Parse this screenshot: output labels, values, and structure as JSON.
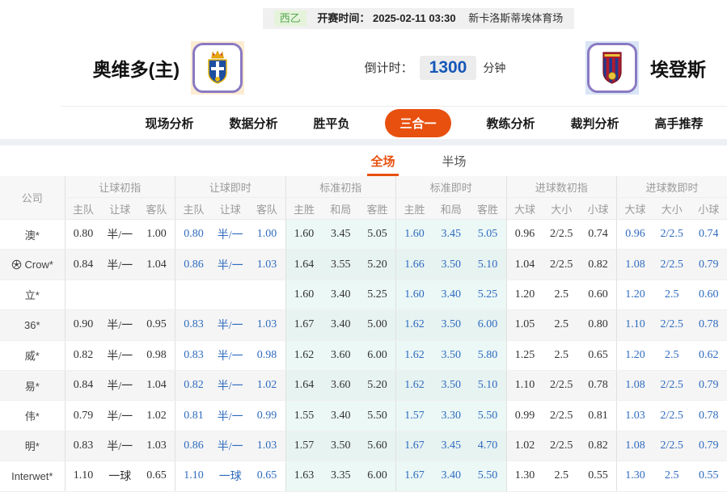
{
  "header": {
    "league": "西乙",
    "kickoff_label": "开赛时间：",
    "kickoff_time": "2025-02-11 03:30",
    "venue": "新卡洛斯蒂埃体育场",
    "home_team": "奥维多(主)",
    "away_team": "埃登斯",
    "countdown_label": "倒计时：",
    "countdown_value": "1300",
    "countdown_unit": "分钟"
  },
  "nav": {
    "items": [
      {
        "label": "现场分析",
        "active": false
      },
      {
        "label": "数据分析",
        "active": false
      },
      {
        "label": "胜平负",
        "active": false
      },
      {
        "label": "三合一",
        "active": true
      },
      {
        "label": "教练分析",
        "active": false
      },
      {
        "label": "裁判分析",
        "active": false
      },
      {
        "label": "高手推荐",
        "active": false
      }
    ]
  },
  "subtabs": {
    "full": "全场",
    "half": "半场"
  },
  "icons": {
    "home_logo": "oviedo-crest",
    "away_logo": "eldense-crest",
    "crow_row": "soccer-ball-icon"
  },
  "colors": {
    "accent_orange": "#e8500f",
    "live_blue": "#2f6bbf",
    "league_green": "#55a854",
    "countdown_blue": "#1557b8",
    "std_column_bg": "#ebf8f6",
    "alt_row_bg": "#f5f5f5"
  },
  "table": {
    "company_header": "公司",
    "groups": [
      {
        "label": "让球初指",
        "cols": [
          "主队",
          "让球",
          "客队"
        ]
      },
      {
        "label": "让球即时",
        "cols": [
          "主队",
          "让球",
          "客队"
        ]
      },
      {
        "label": "标准初指",
        "cols": [
          "主胜",
          "和局",
          "客胜"
        ]
      },
      {
        "label": "标准即时",
        "cols": [
          "主胜",
          "和局",
          "客胜"
        ]
      },
      {
        "label": "进球数初指",
        "cols": [
          "大球",
          "大小",
          "小球"
        ]
      },
      {
        "label": "进球数即时",
        "cols": [
          "大球",
          "大小",
          "小球"
        ]
      }
    ],
    "rows": [
      {
        "company": "澳*",
        "icon": false,
        "cells": [
          "0.80",
          "半/一",
          "1.00",
          "0.80",
          "半/一",
          "1.00",
          "1.60",
          "3.45",
          "5.05",
          "1.60",
          "3.45",
          "5.05",
          "0.96",
          "2/2.5",
          "0.74",
          "0.96",
          "2/2.5",
          "0.74"
        ]
      },
      {
        "company": "Crow*",
        "icon": true,
        "cells": [
          "0.84",
          "半/一",
          "1.04",
          "0.86",
          "半/一",
          "1.03",
          "1.64",
          "3.55",
          "5.20",
          "1.66",
          "3.50",
          "5.10",
          "1.04",
          "2/2.5",
          "0.82",
          "1.08",
          "2/2.5",
          "0.79"
        ]
      },
      {
        "company": "立*",
        "icon": false,
        "cells": [
          "",
          "",
          "",
          "",
          "",
          "",
          "1.60",
          "3.40",
          "5.25",
          "1.60",
          "3.40",
          "5.25",
          "1.20",
          "2.5",
          "0.60",
          "1.20",
          "2.5",
          "0.60"
        ]
      },
      {
        "company": "36*",
        "icon": false,
        "cells": [
          "0.90",
          "半/一",
          "0.95",
          "0.83",
          "半/一",
          "1.03",
          "1.67",
          "3.40",
          "5.00",
          "1.62",
          "3.50",
          "6.00",
          "1.05",
          "2.5",
          "0.80",
          "1.10",
          "2/2.5",
          "0.78"
        ]
      },
      {
        "company": "威*",
        "icon": false,
        "cells": [
          "0.82",
          "半/一",
          "0.98",
          "0.83",
          "半/一",
          "0.98",
          "1.62",
          "3.60",
          "6.00",
          "1.62",
          "3.50",
          "5.80",
          "1.25",
          "2.5",
          "0.65",
          "1.20",
          "2.5",
          "0.62"
        ]
      },
      {
        "company": "易*",
        "icon": false,
        "cells": [
          "0.84",
          "半/一",
          "1.04",
          "0.82",
          "半/一",
          "1.02",
          "1.64",
          "3.60",
          "5.20",
          "1.62",
          "3.50",
          "5.10",
          "1.10",
          "2/2.5",
          "0.78",
          "1.08",
          "2/2.5",
          "0.79"
        ]
      },
      {
        "company": "伟*",
        "icon": false,
        "cells": [
          "0.79",
          "半/一",
          "1.02",
          "0.81",
          "半/一",
          "0.99",
          "1.55",
          "3.40",
          "5.50",
          "1.57",
          "3.30",
          "5.50",
          "0.99",
          "2/2.5",
          "0.81",
          "1.03",
          "2/2.5",
          "0.78"
        ]
      },
      {
        "company": "明*",
        "icon": false,
        "cells": [
          "0.83",
          "半/一",
          "1.03",
          "0.86",
          "半/一",
          "1.03",
          "1.57",
          "3.50",
          "5.60",
          "1.67",
          "3.45",
          "4.70",
          "1.02",
          "2/2.5",
          "0.82",
          "1.08",
          "2/2.5",
          "0.79"
        ]
      },
      {
        "company": "Interwet*",
        "icon": false,
        "cells": [
          "1.10",
          "一球",
          "0.65",
          "1.10",
          "一球",
          "0.65",
          "1.63",
          "3.35",
          "6.00",
          "1.67",
          "3.40",
          "5.50",
          "1.30",
          "2.5",
          "0.55",
          "1.30",
          "2.5",
          "0.55"
        ]
      }
    ]
  }
}
